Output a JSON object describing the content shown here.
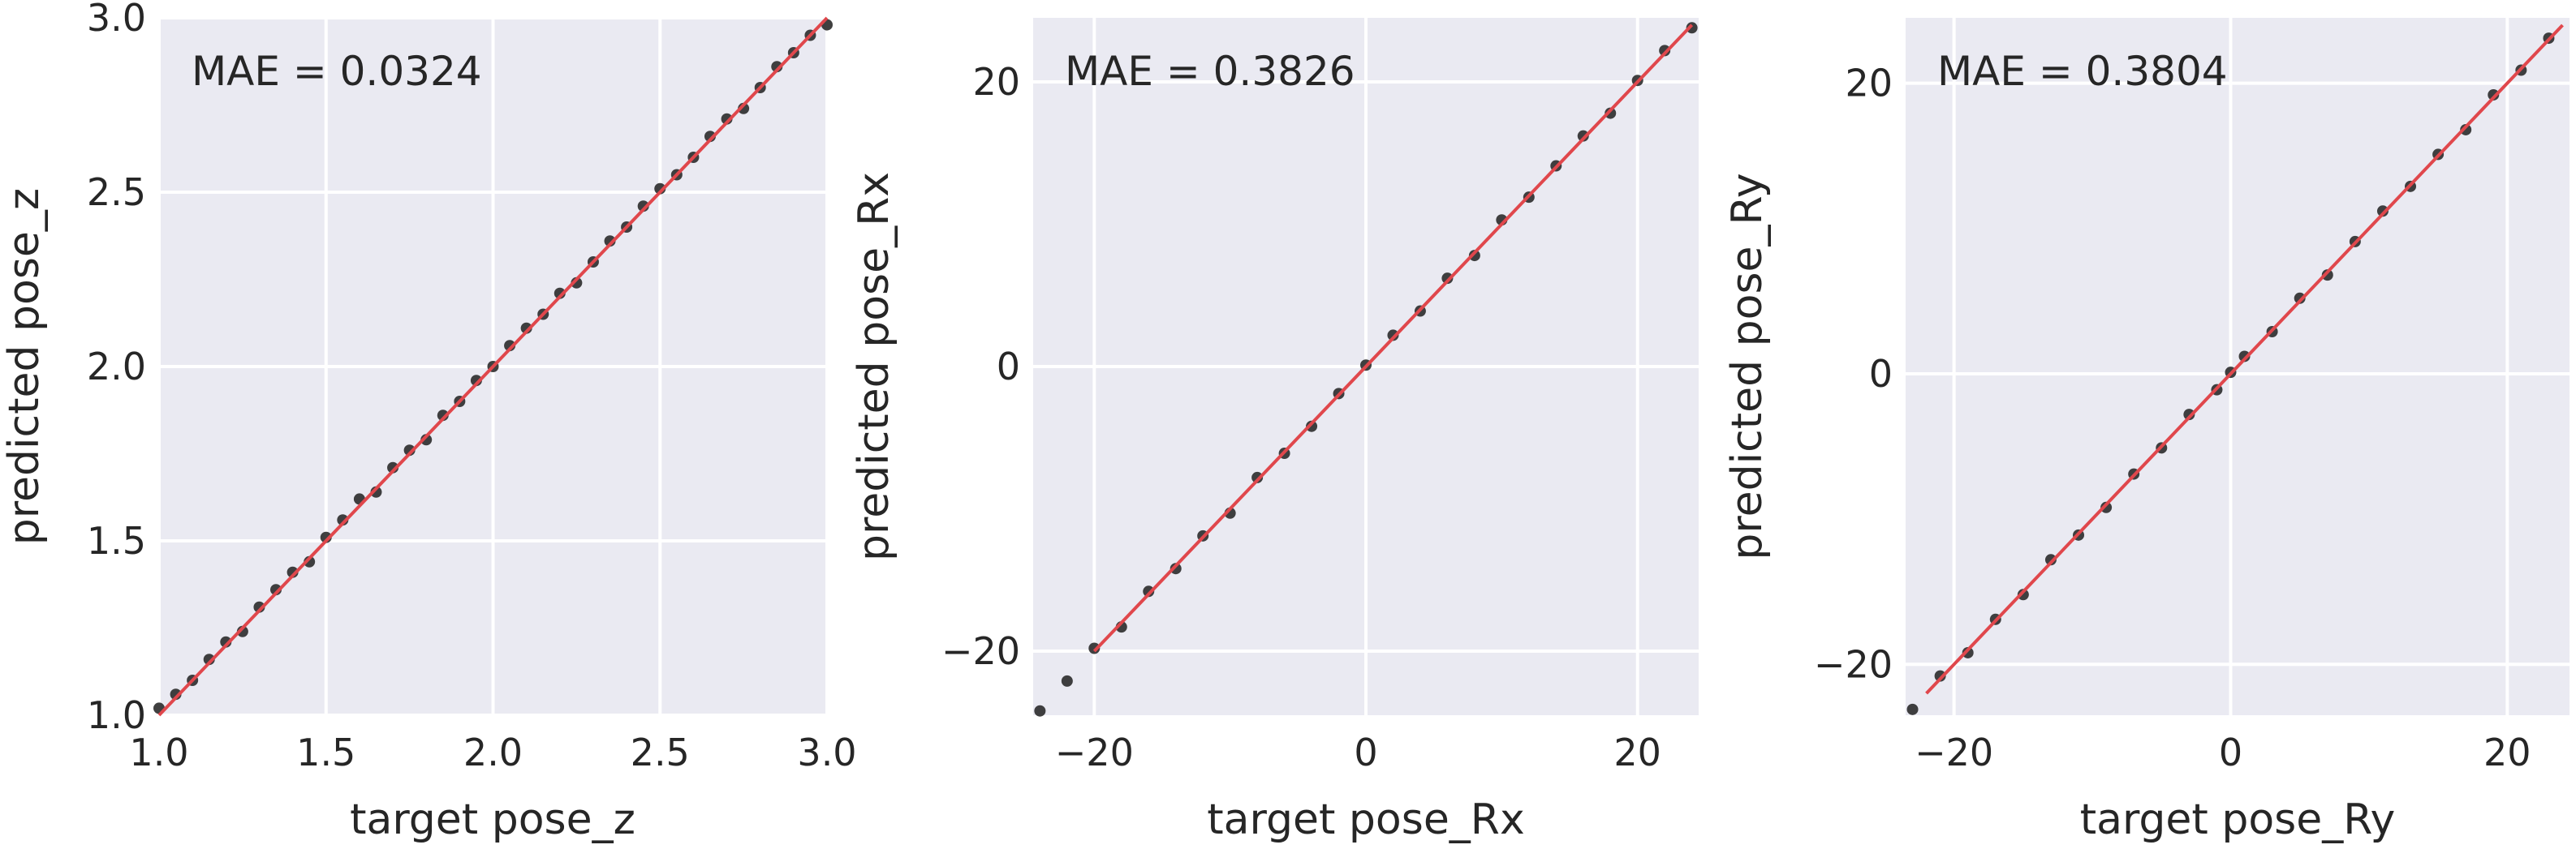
{
  "chart_data": [
    {
      "type": "scatter",
      "xlabel": "target pose_z",
      "ylabel": "predicted pose_z",
      "annotation": "MAE = 0.0324",
      "xlim": [
        1.0,
        3.0
      ],
      "ylim": [
        1.0,
        3.0
      ],
      "xticks": [
        1.0,
        1.5,
        2.0,
        2.5,
        3.0
      ],
      "yticks": [
        1.0,
        1.5,
        2.0,
        2.5,
        3.0
      ],
      "xtick_labels": [
        "1.0",
        "1.5",
        "2.0",
        "2.5",
        "3.0"
      ],
      "ytick_labels": [
        "1.0",
        "1.5",
        "2.0",
        "2.5",
        "3.0"
      ],
      "x": [
        1.0,
        1.05,
        1.1,
        1.15,
        1.2,
        1.25,
        1.3,
        1.35,
        1.4,
        1.45,
        1.5,
        1.55,
        1.6,
        1.65,
        1.7,
        1.75,
        1.8,
        1.85,
        1.9,
        1.95,
        2.0,
        2.05,
        2.1,
        2.15,
        2.2,
        2.25,
        2.3,
        2.35,
        2.4,
        2.45,
        2.5,
        2.55,
        2.6,
        2.65,
        2.7,
        2.75,
        2.8,
        2.85,
        2.9,
        2.95,
        3.0
      ],
      "y": [
        1.02,
        1.06,
        1.1,
        1.16,
        1.21,
        1.24,
        1.31,
        1.36,
        1.41,
        1.44,
        1.51,
        1.56,
        1.62,
        1.64,
        1.71,
        1.76,
        1.79,
        1.86,
        1.9,
        1.96,
        2.0,
        2.06,
        2.11,
        2.15,
        2.21,
        2.24,
        2.3,
        2.36,
        2.4,
        2.46,
        2.51,
        2.55,
        2.6,
        2.66,
        2.71,
        2.74,
        2.8,
        2.86,
        2.9,
        2.95,
        2.98
      ],
      "fit_line": [
        [
          1.0,
          1.0
        ],
        [
          3.0,
          3.0
        ]
      ],
      "grid": true,
      "colors": {
        "background": "#eaeaf2",
        "grid": "#ffffff",
        "points": "#2b2b2b",
        "fit_line": "#e0474c"
      }
    },
    {
      "type": "scatter",
      "xlabel": "target pose_Rx",
      "ylabel": "predicted pose_Rx",
      "annotation": "MAE = 0.3826",
      "xlim": [
        -24.5,
        24.5
      ],
      "ylim": [
        -24.5,
        24.5
      ],
      "xticks": [
        -20,
        0,
        20
      ],
      "yticks": [
        -20,
        0,
        20
      ],
      "xtick_labels": [
        "−20",
        "0",
        "20"
      ],
      "ytick_labels": [
        "−20",
        "0",
        "20"
      ],
      "x": [
        -24,
        -22,
        -20,
        -18,
        -16,
        -14,
        -12,
        -10,
        -8,
        -6,
        -4,
        -2,
        0,
        2,
        4,
        6,
        8,
        10,
        12,
        14,
        16,
        18,
        20,
        22,
        24
      ],
      "y": [
        -24.2,
        -22.1,
        -19.8,
        -18.3,
        -15.8,
        -14.2,
        -11.9,
        -10.3,
        -7.8,
        -6.1,
        -4.2,
        -1.9,
        0.1,
        2.2,
        3.9,
        6.2,
        7.8,
        10.3,
        11.9,
        14.1,
        16.2,
        17.8,
        20.1,
        22.2,
        23.8
      ],
      "fit_line": [
        [
          -20,
          -20
        ],
        [
          24,
          24
        ]
      ],
      "grid": true,
      "colors": {
        "background": "#eaeaf2",
        "grid": "#ffffff",
        "points": "#2b2b2b",
        "fit_line": "#e0474c"
      }
    },
    {
      "type": "scatter",
      "xlabel": "target pose_Ry",
      "ylabel": "predicted pose_Ry",
      "annotation": "MAE = 0.3804",
      "xlim": [
        -23.5,
        24.5
      ],
      "ylim": [
        -23.5,
        24.5
      ],
      "xticks": [
        -20,
        0,
        20
      ],
      "yticks": [
        -20,
        0,
        20
      ],
      "xtick_labels": [
        "−20",
        "0",
        "20"
      ],
      "ytick_labels": [
        "−20",
        "0",
        "20"
      ],
      "x": [
        -23,
        -21,
        -19,
        -17,
        -15,
        -13,
        -11,
        -9,
        -7,
        -5,
        -3,
        -1,
        0,
        1,
        3,
        5,
        7,
        9,
        11,
        13,
        15,
        17,
        19,
        21,
        23
      ],
      "y": [
        -23.1,
        -20.8,
        -19.2,
        -16.9,
        -15.2,
        -12.8,
        -11.1,
        -9.2,
        -6.9,
        -5.1,
        -2.8,
        -1.1,
        0.1,
        1.2,
        2.9,
        5.2,
        6.8,
        9.1,
        11.2,
        12.9,
        15.1,
        16.8,
        19.2,
        20.9,
        23.1
      ],
      "fit_line": [
        [
          -22,
          -22
        ],
        [
          24,
          24
        ]
      ],
      "grid": true,
      "colors": {
        "background": "#eaeaf2",
        "grid": "#ffffff",
        "points": "#2b2b2b",
        "fit_line": "#e0474c"
      }
    }
  ]
}
